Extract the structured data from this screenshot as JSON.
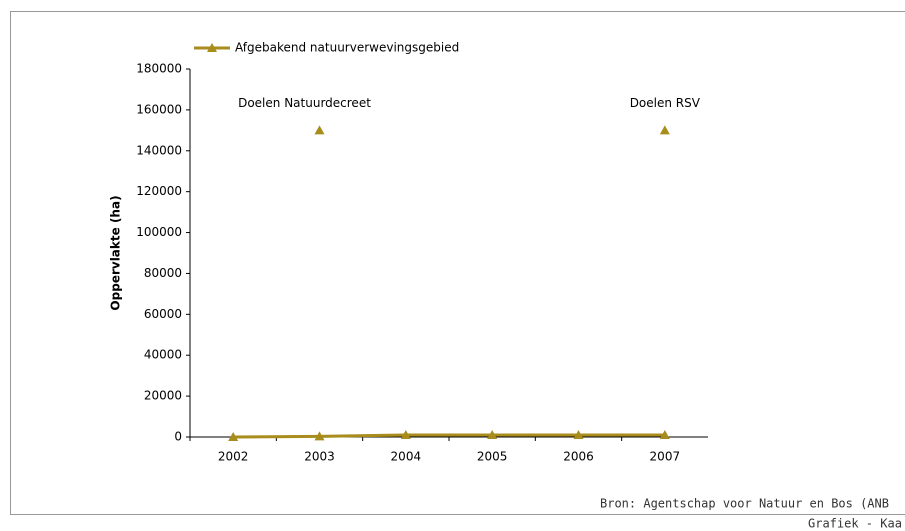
{
  "chart_data": {
    "type": "line",
    "y_label": "Oppervlakte (ha)",
    "categories": [
      "2002",
      "2003",
      "2004",
      "2005",
      "2006",
      "2007"
    ],
    "series": [
      {
        "name": "Afgebakend natuurverwevingsgebied",
        "color": "#a88c1c",
        "values": [
          0,
          300,
          1000,
          1000,
          1000,
          1000
        ]
      }
    ],
    "targets": [
      {
        "label": "Doelen Natuurdecreet",
        "category": "2003",
        "value": 150000
      },
      {
        "label": "Doelen RSV",
        "category": "2007",
        "value": 150000
      }
    ],
    "ylim": [
      0,
      180000
    ],
    "yticks": [
      0,
      20000,
      40000,
      60000,
      80000,
      100000,
      120000,
      140000,
      160000,
      180000
    ],
    "legend": "top-left",
    "source": "Bron: Agentschap voor Natuur en Bos (ANB",
    "footer": "Grafiek - Kaa"
  }
}
